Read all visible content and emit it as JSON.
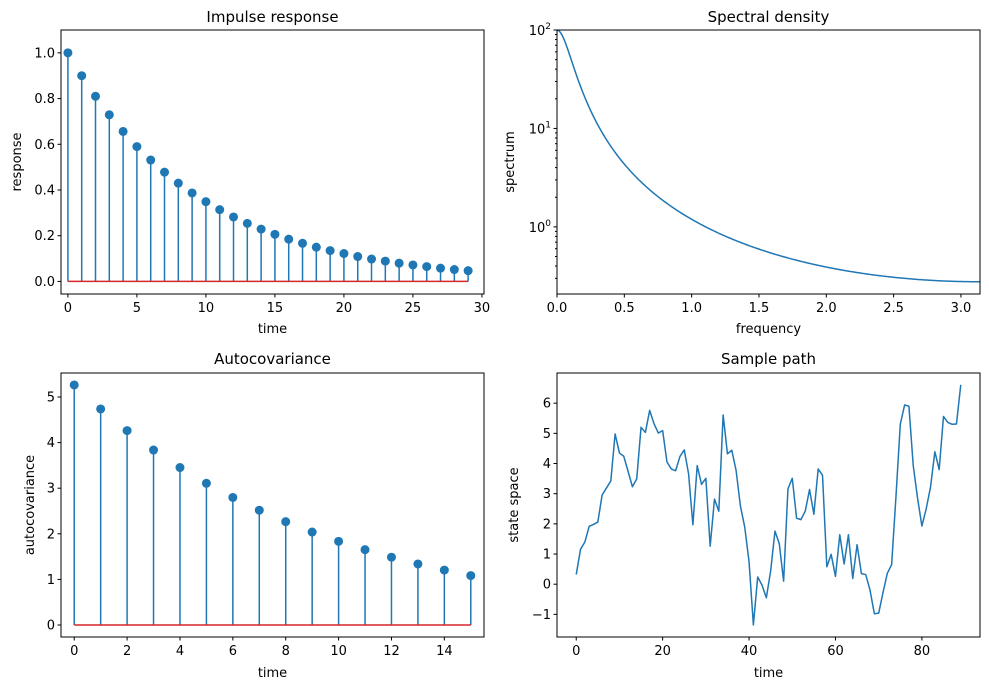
{
  "figure": {
    "colors": {
      "line": "#1f77b4",
      "baseline": "#d62728",
      "axes": "#000000"
    }
  },
  "chart_data": [
    {
      "id": "impulse",
      "type": "stem",
      "title": "Impulse response",
      "xlabel": "time",
      "ylabel": "response",
      "xlim": [
        -0.5,
        30.15
      ],
      "ylim": [
        -0.055,
        1.1
      ],
      "xticks": [
        0,
        5,
        10,
        15,
        20,
        25,
        30
      ],
      "xtick_labels": [
        "0",
        "5",
        "10",
        "15",
        "20",
        "25",
        "30"
      ],
      "yticks": [
        0.0,
        0.2,
        0.4,
        0.6,
        0.8,
        1.0
      ],
      "ytick_labels": [
        "0.0",
        "0.2",
        "0.4",
        "0.6",
        "0.8",
        "1.0"
      ],
      "yscale": "linear",
      "x": [
        0,
        1,
        2,
        3,
        4,
        5,
        6,
        7,
        8,
        9,
        10,
        11,
        12,
        13,
        14,
        15,
        16,
        17,
        18,
        19,
        20,
        21,
        22,
        23,
        24,
        25,
        26,
        27,
        28,
        29
      ],
      "y": [
        1.0,
        0.9,
        0.81,
        0.729,
        0.656,
        0.59,
        0.531,
        0.478,
        0.43,
        0.387,
        0.349,
        0.314,
        0.282,
        0.254,
        0.229,
        0.206,
        0.185,
        0.167,
        0.15,
        0.135,
        0.122,
        0.109,
        0.098,
        0.089,
        0.08,
        0.072,
        0.065,
        0.058,
        0.052,
        0.047
      ],
      "baseline": 0
    },
    {
      "id": "spectral",
      "type": "line",
      "title": "Spectral density",
      "xlabel": "frequency",
      "ylabel": "spectrum",
      "xlim": [
        0,
        3.14159
      ],
      "ylim": [
        0.208,
        100
      ],
      "yscale": "log",
      "xticks": [
        0.0,
        0.5,
        1.0,
        1.5,
        2.0,
        2.5,
        3.0
      ],
      "xtick_labels": [
        "0.0",
        "0.5",
        "1.0",
        "1.5",
        "2.0",
        "2.5",
        "3.0"
      ],
      "yticks": [
        1,
        10,
        100
      ],
      "ytick_labels": [
        "10^0",
        "10^1",
        "10^2"
      ],
      "ytick_bases": [
        "10",
        "10",
        "10"
      ],
      "ytick_exps": [
        "0",
        "1",
        "2"
      ],
      "function": "1 / |1 - 0.9 e^{i w}|^2",
      "x": [
        0.0,
        0.05,
        0.1,
        0.15,
        0.2,
        0.25,
        0.3,
        0.35,
        0.4,
        0.5,
        0.6,
        0.7,
        0.8,
        0.9,
        1.0,
        1.2,
        1.4,
        1.6,
        1.8,
        2.0,
        2.2,
        2.4,
        2.6,
        2.8,
        3.0,
        3.14159
      ],
      "y": [
        100.0,
        81.6,
        50.8,
        31.1,
        20.3,
        14.1,
        10.3,
        7.86,
        6.2,
        4.17,
        3.01,
        2.29,
        1.81,
        1.48,
        1.23,
        0.907,
        0.711,
        0.582,
        0.493,
        0.431,
        0.386,
        0.352,
        0.326,
        0.307,
        0.292,
        0.277
      ]
    },
    {
      "id": "autocov",
      "type": "stem",
      "title": "Autocovariance",
      "xlabel": "time",
      "ylabel": "autocovariance",
      "xlim": [
        -0.5,
        15.5
      ],
      "ylim": [
        -0.263,
        5.526
      ],
      "yscale": "linear",
      "xticks": [
        0,
        2,
        4,
        6,
        8,
        10,
        12,
        14
      ],
      "xtick_labels": [
        "0",
        "2",
        "4",
        "6",
        "8",
        "10",
        "12",
        "14"
      ],
      "yticks": [
        0,
        1,
        2,
        3,
        4,
        5
      ],
      "ytick_labels": [
        "0",
        "1",
        "2",
        "3",
        "4",
        "5"
      ],
      "x": [
        0,
        1,
        2,
        3,
        4,
        5,
        6,
        7,
        8,
        9,
        10,
        11,
        12,
        13,
        14,
        15
      ],
      "y": [
        5.263,
        4.737,
        4.263,
        3.837,
        3.453,
        3.108,
        2.797,
        2.517,
        2.266,
        2.039,
        1.835,
        1.652,
        1.487,
        1.338,
        1.204,
        1.084
      ],
      "baseline": 0
    },
    {
      "id": "sample",
      "type": "line",
      "title": "Sample path",
      "xlabel": "time",
      "ylabel": "state space",
      "xlim": [
        -4.45,
        93.45
      ],
      "ylim": [
        -1.75,
        7.0
      ],
      "yscale": "linear",
      "xticks": [
        0,
        20,
        40,
        60,
        80
      ],
      "xtick_labels": [
        "0",
        "20",
        "40",
        "60",
        "80"
      ],
      "yticks": [
        -1,
        0,
        1,
        2,
        3,
        4,
        5,
        6
      ],
      "ytick_labels": [
        "−1",
        "0",
        "1",
        "2",
        "3",
        "4",
        "5",
        "6"
      ],
      "y": [
        0.32,
        1.16,
        1.4,
        1.92,
        1.98,
        2.06,
        2.96,
        3.19,
        3.42,
        4.98,
        4.35,
        4.24,
        3.74,
        3.23,
        3.49,
        5.2,
        5.03,
        5.76,
        5.32,
        5.01,
        5.09,
        4.05,
        3.82,
        3.76,
        4.23,
        4.45,
        3.66,
        1.97,
        3.93,
        3.31,
        3.51,
        1.26,
        2.82,
        2.42,
        5.61,
        4.32,
        4.44,
        3.77,
        2.59,
        1.89,
        0.74,
        -1.35,
        0.24,
        -0.03,
        -0.45,
        0.44,
        1.76,
        1.34,
        0.1,
        3.16,
        3.51,
        2.19,
        2.14,
        2.42,
        3.14,
        2.32,
        3.82,
        3.61,
        0.58,
        0.99,
        0.26,
        1.64,
        0.67,
        1.64,
        0.19,
        1.31,
        0.35,
        0.32,
        -0.2,
        -0.98,
        -0.96,
        -0.28,
        0.36,
        0.65,
        2.9,
        5.3,
        5.94,
        5.9,
        3.93,
        2.85,
        1.93,
        2.5,
        3.22,
        4.39,
        3.8,
        5.56,
        5.36,
        5.3,
        5.31,
        6.61
      ]
    }
  ]
}
